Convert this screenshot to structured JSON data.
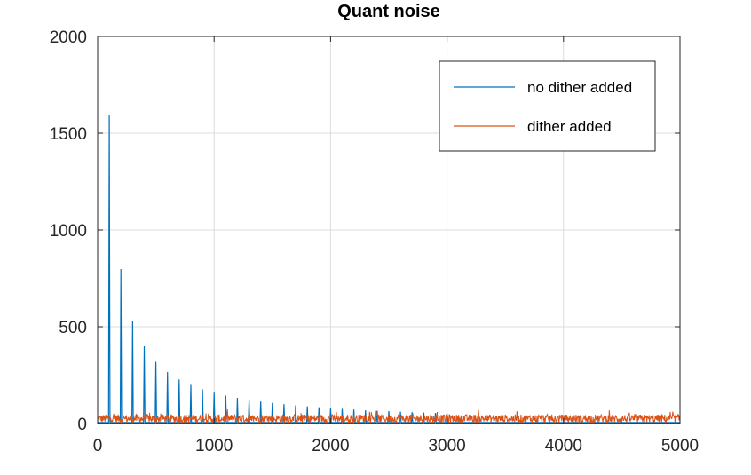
{
  "chart_data": {
    "type": "line",
    "title": "Quant noise",
    "xlabel": "",
    "ylabel": "",
    "xlim": [
      0,
      5000
    ],
    "ylim": [
      0,
      2000
    ],
    "x_ticks": [
      0,
      1000,
      2000,
      3000,
      4000,
      5000
    ],
    "y_ticks": [
      0,
      500,
      1000,
      1500,
      2000
    ],
    "x_tick_labels": [
      "0",
      "1000",
      "2000",
      "3000",
      "4000",
      "5000"
    ],
    "y_tick_labels": [
      "0",
      "500",
      "1000",
      "1500",
      "2000"
    ],
    "grid": true,
    "legend_position": "top-right",
    "series": [
      {
        "name": "no dither added",
        "color": "#0072BD",
        "baseline": 5,
        "peaks_x": [
          100,
          200,
          300,
          400,
          500,
          600,
          700,
          800,
          900,
          1000,
          1100,
          1200,
          1300,
          1400,
          1500,
          1600,
          1700,
          1800,
          1900,
          2000,
          2100,
          2200,
          2300,
          2400,
          2500,
          2600,
          2700,
          2800,
          2900,
          3000
        ],
        "peaks_y": [
          1595,
          798,
          532,
          399,
          319,
          266,
          228,
          200,
          177,
          160,
          145,
          133,
          123,
          114,
          107,
          100,
          94,
          89,
          84,
          80,
          76,
          73,
          69,
          66,
          64,
          61,
          59,
          57,
          55,
          53
        ]
      },
      {
        "name": "dither added",
        "color": "#D95319",
        "mean": 25,
        "range": [
          3,
          78
        ]
      }
    ]
  }
}
